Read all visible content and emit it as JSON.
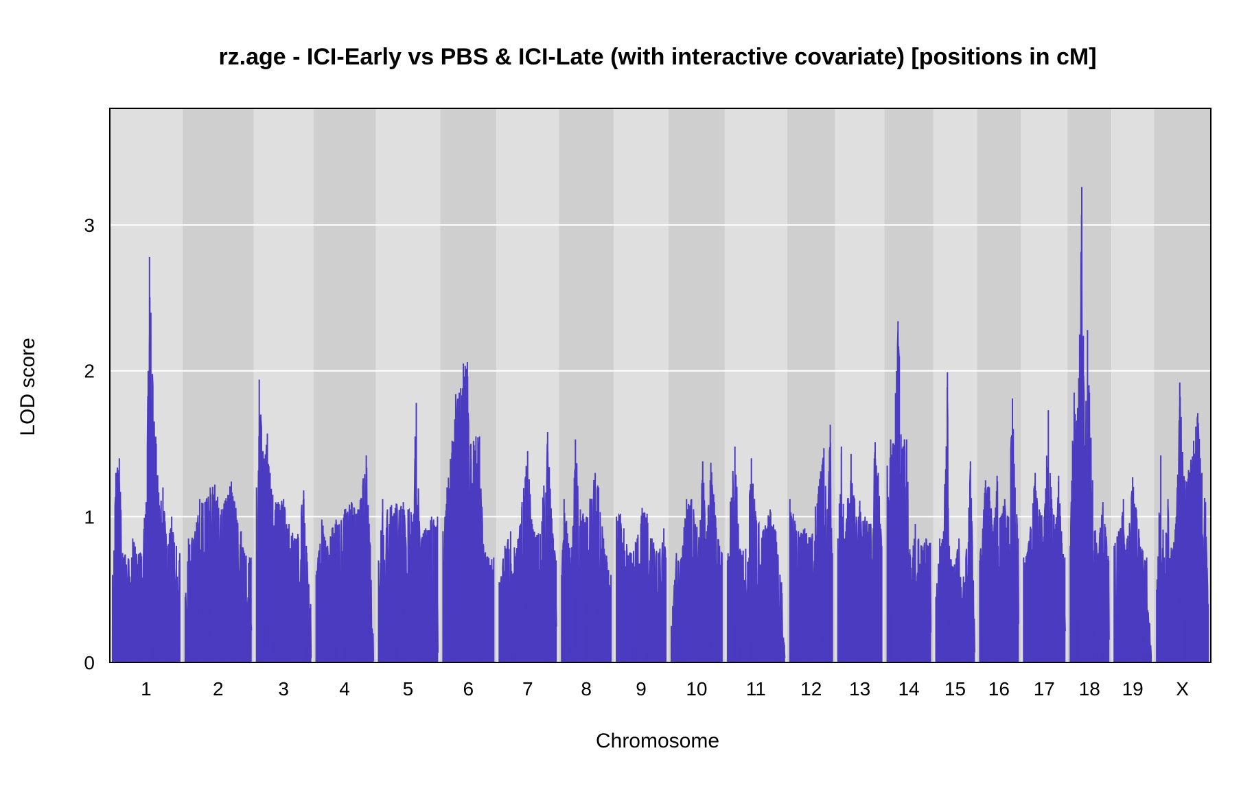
{
  "chart_data": {
    "type": "line",
    "title": "rz.age - ICI-Early vs PBS & ICI-Late (with interactive covariate) [positions in cM]",
    "xlabel": "Chromosome",
    "ylabel": "LOD score",
    "ylim": [
      0,
      3.8
    ],
    "yticks": [
      0,
      1,
      2,
      3
    ],
    "grid": "horizontal",
    "colors": {
      "line": "#4B3BC0",
      "band_light": "#DFDFDF",
      "band_dark": "#CFCFCF",
      "grid": "#FFFFFF"
    },
    "chromosomes": [
      {
        "name": "1",
        "peaks": [
          [
            0,
            0.6
          ],
          [
            0.05,
            1.3
          ],
          [
            0.1,
            1.4
          ],
          [
            0.15,
            0.75
          ],
          [
            0.3,
            0.85
          ],
          [
            0.4,
            0.75
          ],
          [
            0.5,
            1.1
          ],
          [
            0.53,
            2.0
          ],
          [
            0.55,
            2.78
          ],
          [
            0.57,
            2.4
          ],
          [
            0.6,
            1.9
          ],
          [
            0.65,
            1.5
          ],
          [
            0.7,
            1.05
          ],
          [
            0.75,
            1.2
          ],
          [
            0.82,
            0.8
          ],
          [
            0.88,
            1.0
          ],
          [
            0.95,
            0.8
          ],
          [
            1,
            0.75
          ]
        ]
      },
      {
        "name": "2",
        "peaks": [
          [
            0,
            0.45
          ],
          [
            0.05,
            0.85
          ],
          [
            0.15,
            0.9
          ],
          [
            0.22,
            1.12
          ],
          [
            0.3,
            1.1
          ],
          [
            0.38,
            1.2
          ],
          [
            0.45,
            1.22
          ],
          [
            0.55,
            1.05
          ],
          [
            0.7,
            1.24
          ],
          [
            0.75,
            1.1
          ],
          [
            0.85,
            0.9
          ],
          [
            0.9,
            0.75
          ],
          [
            1,
            0.72
          ]
        ]
      },
      {
        "name": "3",
        "peaks": [
          [
            0,
            1.2
          ],
          [
            0.05,
            1.94
          ],
          [
            0.08,
            1.7
          ],
          [
            0.12,
            1.45
          ],
          [
            0.2,
            1.57
          ],
          [
            0.25,
            1.3
          ],
          [
            0.3,
            1.15
          ],
          [
            0.4,
            1.1
          ],
          [
            0.5,
            1.12
          ],
          [
            0.6,
            0.95
          ],
          [
            0.75,
            0.85
          ],
          [
            0.87,
            1.18
          ],
          [
            0.92,
            0.8
          ],
          [
            1,
            0.4
          ]
        ]
      },
      {
        "name": "4",
        "peaks": [
          [
            0,
            0.6
          ],
          [
            0.1,
            0.98
          ],
          [
            0.2,
            0.8
          ],
          [
            0.28,
            0.92
          ],
          [
            0.35,
            0.98
          ],
          [
            0.5,
            1.05
          ],
          [
            0.62,
            1.1
          ],
          [
            0.75,
            1.05
          ],
          [
            0.88,
            1.42
          ],
          [
            0.95,
            0.8
          ],
          [
            1,
            0.2
          ]
        ]
      },
      {
        "name": "5",
        "peaks": [
          [
            0,
            0.7
          ],
          [
            0.07,
            1.12
          ],
          [
            0.15,
            1.05
          ],
          [
            0.22,
            1.08
          ],
          [
            0.3,
            1.09
          ],
          [
            0.42,
            1.1
          ],
          [
            0.5,
            1.05
          ],
          [
            0.6,
            1.02
          ],
          [
            0.62,
            1.55
          ],
          [
            0.64,
            1.78
          ],
          [
            0.7,
            0.85
          ],
          [
            0.8,
            0.92
          ],
          [
            0.9,
            1.0
          ],
          [
            1,
            1.0
          ]
        ]
      },
      {
        "name": "6",
        "peaks": [
          [
            0,
            0.9
          ],
          [
            0.08,
            1.2
          ],
          [
            0.18,
            1.52
          ],
          [
            0.25,
            1.84
          ],
          [
            0.32,
            1.85
          ],
          [
            0.4,
            2.05
          ],
          [
            0.48,
            2.06
          ],
          [
            0.55,
            1.5
          ],
          [
            0.65,
            1.55
          ],
          [
            0.72,
            1.55
          ],
          [
            0.8,
            0.8
          ],
          [
            1,
            0.72
          ]
        ]
      },
      {
        "name": "7",
        "peaks": [
          [
            0,
            0.55
          ],
          [
            0.1,
            0.8
          ],
          [
            0.2,
            0.9
          ],
          [
            0.3,
            0.75
          ],
          [
            0.4,
            1.1
          ],
          [
            0.5,
            1.45
          ],
          [
            0.58,
            0.95
          ],
          [
            0.72,
            0.88
          ],
          [
            0.85,
            1.58
          ],
          [
            0.95,
            0.85
          ],
          [
            1,
            0.7
          ]
        ]
      },
      {
        "name": "8",
        "peaks": [
          [
            0,
            0.6
          ],
          [
            0.05,
            1.12
          ],
          [
            0.2,
            0.72
          ],
          [
            0.28,
            1.53
          ],
          [
            0.38,
            1.05
          ],
          [
            0.5,
            1.0
          ],
          [
            0.68,
            1.3
          ],
          [
            0.75,
            1.2
          ],
          [
            0.85,
            0.85
          ],
          [
            1,
            0.6
          ]
        ]
      },
      {
        "name": "9",
        "peaks": [
          [
            0,
            1.0
          ],
          [
            0.08,
            1.02
          ],
          [
            0.15,
            0.92
          ],
          [
            0.3,
            0.75
          ],
          [
            0.42,
            0.85
          ],
          [
            0.52,
            1.06
          ],
          [
            0.62,
            1.02
          ],
          [
            0.72,
            0.85
          ],
          [
            0.85,
            0.75
          ],
          [
            0.96,
            0.92
          ],
          [
            1,
            0.72
          ]
        ]
      },
      {
        "name": "10",
        "peaks": [
          [
            0,
            0.25
          ],
          [
            0.1,
            0.75
          ],
          [
            0.2,
            0.72
          ],
          [
            0.3,
            1.12
          ],
          [
            0.4,
            1.12
          ],
          [
            0.55,
            0.85
          ],
          [
            0.62,
            1.38
          ],
          [
            0.7,
            0.9
          ],
          [
            0.78,
            1.37
          ],
          [
            0.85,
            1.1
          ],
          [
            0.95,
            0.8
          ],
          [
            1,
            0.75
          ]
        ]
      },
      {
        "name": "11",
        "peaks": [
          [
            0,
            0.7
          ],
          [
            0.05,
            1.1
          ],
          [
            0.13,
            1.48
          ],
          [
            0.22,
            0.78
          ],
          [
            0.32,
            0.78
          ],
          [
            0.42,
            1.4
          ],
          [
            0.5,
            1.0
          ],
          [
            0.62,
            0.9
          ],
          [
            0.75,
            1.05
          ],
          [
            0.85,
            0.9
          ],
          [
            0.95,
            0.55
          ],
          [
            1,
            0.12
          ]
        ]
      },
      {
        "name": "12",
        "peaks": [
          [
            0,
            1.12
          ],
          [
            0.08,
            1.02
          ],
          [
            0.2,
            0.9
          ],
          [
            0.35,
            0.92
          ],
          [
            0.5,
            0.85
          ],
          [
            0.6,
            1.07
          ],
          [
            0.8,
            1.47
          ],
          [
            0.88,
            1.05
          ],
          [
            0.95,
            1.63
          ],
          [
            1,
            0.75
          ]
        ]
      },
      {
        "name": "13",
        "peaks": [
          [
            0,
            0.85
          ],
          [
            0.08,
            1.48
          ],
          [
            0.15,
            0.85
          ],
          [
            0.3,
            1.43
          ],
          [
            0.42,
            1.0
          ],
          [
            0.5,
            1.11
          ],
          [
            0.62,
            1.0
          ],
          [
            0.75,
            0.95
          ],
          [
            0.85,
            1.51
          ],
          [
            0.92,
            1.3
          ],
          [
            1,
            0.8
          ]
        ]
      },
      {
        "name": "14",
        "peaks": [
          [
            0,
            1.35
          ],
          [
            0.08,
            1.53
          ],
          [
            0.15,
            1.5
          ],
          [
            0.25,
            2.34
          ],
          [
            0.28,
            2.1
          ],
          [
            0.32,
            1.55
          ],
          [
            0.45,
            1.53
          ],
          [
            0.55,
            0.65
          ],
          [
            0.65,
            0.95
          ],
          [
            0.8,
            0.8
          ],
          [
            0.9,
            0.85
          ],
          [
            1,
            0.82
          ]
        ]
      },
      {
        "name": "15",
        "peaks": [
          [
            0,
            0.45
          ],
          [
            0.1,
            0.85
          ],
          [
            0.2,
            0.9
          ],
          [
            0.3,
            1.99
          ],
          [
            0.35,
            0.8
          ],
          [
            0.45,
            0.65
          ],
          [
            0.6,
            0.85
          ],
          [
            0.75,
            0.55
          ],
          [
            0.9,
            1.38
          ],
          [
            1,
            0.3
          ]
        ]
      },
      {
        "name": "16",
        "peaks": [
          [
            0,
            0.7
          ],
          [
            0.15,
            1.25
          ],
          [
            0.25,
            1.2
          ],
          [
            0.35,
            0.9
          ],
          [
            0.45,
            1.28
          ],
          [
            0.55,
            1.0
          ],
          [
            0.65,
            1.12
          ],
          [
            0.75,
            1.0
          ],
          [
            0.85,
            1.81
          ],
          [
            0.92,
            1.2
          ],
          [
            1,
            0.85
          ]
        ]
      },
      {
        "name": "17",
        "peaks": [
          [
            0,
            0.72
          ],
          [
            0.12,
            0.82
          ],
          [
            0.28,
            1.3
          ],
          [
            0.38,
            1.05
          ],
          [
            0.5,
            1.0
          ],
          [
            0.6,
            1.73
          ],
          [
            0.68,
            1.12
          ],
          [
            0.78,
            0.95
          ],
          [
            0.85,
            1.28
          ],
          [
            0.92,
            0.9
          ],
          [
            1,
            0.72
          ]
        ]
      },
      {
        "name": "18",
        "peaks": [
          [
            0,
            0.8
          ],
          [
            0.06,
            1.52
          ],
          [
            0.1,
            1.85
          ],
          [
            0.15,
            1.6
          ],
          [
            0.22,
            1.95
          ],
          [
            0.3,
            3.26
          ],
          [
            0.34,
            2.24
          ],
          [
            0.38,
            1.48
          ],
          [
            0.45,
            2.28
          ],
          [
            0.5,
            1.85
          ],
          [
            0.58,
            1.25
          ],
          [
            0.7,
            0.75
          ],
          [
            0.85,
            1.1
          ],
          [
            1,
            0.7
          ]
        ]
      },
      {
        "name": "19",
        "peaks": [
          [
            0,
            0.8
          ],
          [
            0.12,
            0.9
          ],
          [
            0.25,
            1.12
          ],
          [
            0.35,
            0.85
          ],
          [
            0.5,
            1.27
          ],
          [
            0.6,
            1.05
          ],
          [
            0.75,
            0.78
          ],
          [
            0.88,
            0.72
          ],
          [
            1,
            0.05
          ]
        ]
      },
      {
        "name": "X",
        "peaks": [
          [
            0,
            0.5
          ],
          [
            0.08,
            1.42
          ],
          [
            0.15,
            0.72
          ],
          [
            0.22,
            1.12
          ],
          [
            0.3,
            0.75
          ],
          [
            0.38,
            1.0
          ],
          [
            0.45,
            1.92
          ],
          [
            0.55,
            1.25
          ],
          [
            0.62,
            1.32
          ],
          [
            0.72,
            1.52
          ],
          [
            0.8,
            1.71
          ],
          [
            0.88,
            1.3
          ],
          [
            0.95,
            1.1
          ],
          [
            1,
            0.4
          ]
        ]
      }
    ]
  }
}
